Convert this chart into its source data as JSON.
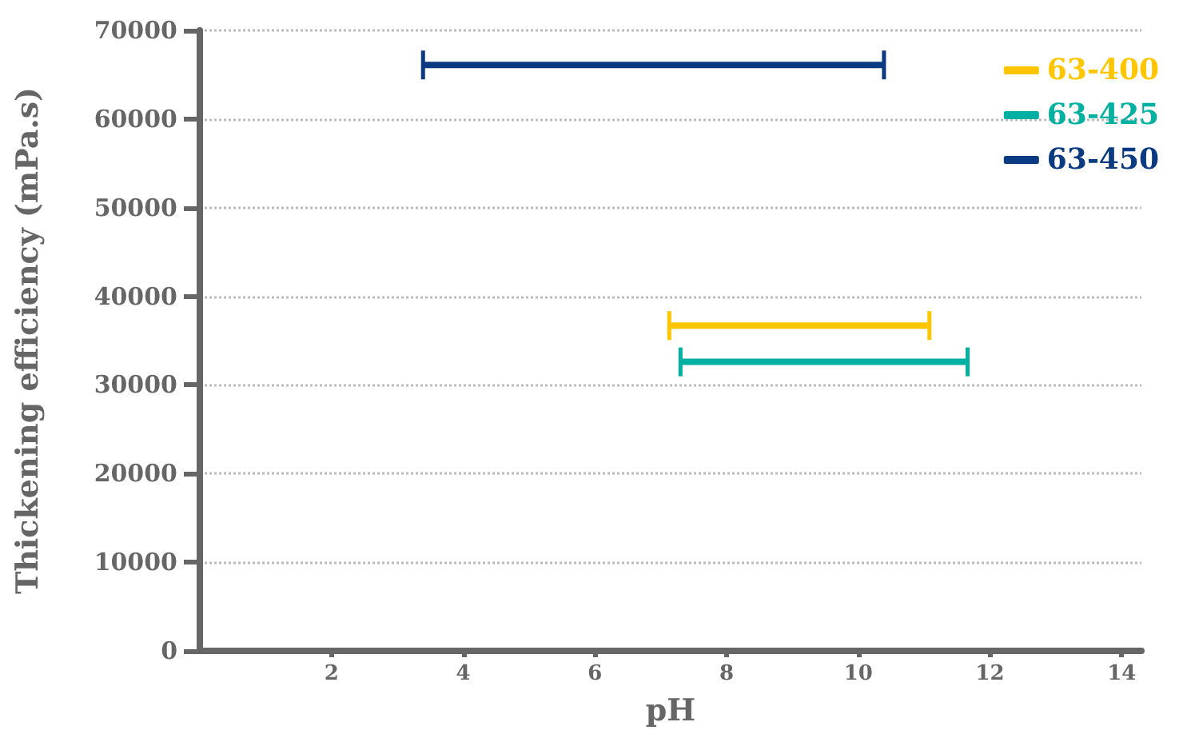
{
  "chart_data": {
    "type": "line",
    "xlabel": "pH",
    "ylabel": "Thickening efficiency (mPa.s)",
    "series": [
      {
        "name": "63-400",
        "color": "#ffc600",
        "x": [
          7.13,
          11.08
        ],
        "values": [
          36700,
          36700
        ]
      },
      {
        "name": "63-425",
        "color": "#00b0a0",
        "x": [
          7.3,
          11.66
        ],
        "values": [
          32600,
          32600
        ]
      },
      {
        "name": "63-450",
        "color": "#0a3a80",
        "x": [
          3.39,
          10.39
        ],
        "values": [
          66100,
          66100
        ]
      }
    ],
    "xlim": [
      0,
      14.3
    ],
    "xticks": [
      2,
      4,
      6,
      8,
      10,
      12,
      14
    ],
    "ylim": [
      0,
      70000
    ],
    "yticks": [
      0,
      10000,
      20000,
      30000,
      40000,
      50000,
      60000,
      70000
    ],
    "grid": "y",
    "legend": "top right"
  }
}
